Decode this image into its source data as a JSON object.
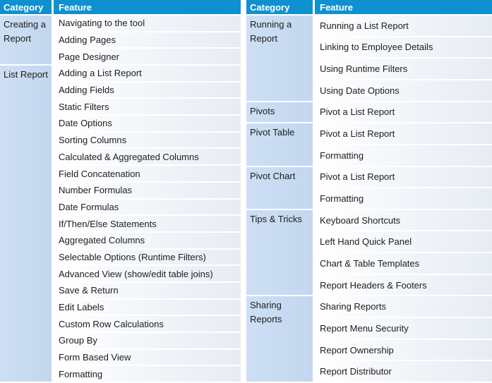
{
  "colors": {
    "header_bg": "#0E91D1",
    "header_text": "#FFFFFF",
    "category_bg_start": "#CEDFF4",
    "category_bg_end": "#C2D7EF",
    "row_bg_start": "#FFFFFF",
    "row_bg_end": "#E7ECF4",
    "body_text": "#1C1C1C",
    "separator": "#FFFFFF"
  },
  "tables": [
    {
      "name": "left",
      "headers": {
        "category": "Category",
        "feature": "Feature"
      },
      "groups": [
        {
          "category": "Creating a Report",
          "features": [
            "Navigating to the tool",
            "Adding Pages",
            "Page Designer"
          ]
        },
        {
          "category": "List Report",
          "features": [
            "Adding a List Report",
            "Adding Fields",
            "Static Filters",
            "Date Options",
            "Sorting Columns",
            "Calculated & Aggregated Columns",
            "Field Concatenation",
            "Number Formulas",
            "Date Formulas",
            "If/Then/Else Statements",
            "Aggregated Columns",
            "Selectable Options (Runtime Filters)",
            "Advanced View (show/edit table joins)",
            "Save & Return",
            "Edit Labels",
            "Custom Row Calculations",
            "Group By",
            "Form Based View",
            "Formatting"
          ]
        }
      ]
    },
    {
      "name": "right",
      "headers": {
        "category": "Category",
        "feature": "Feature"
      },
      "groups": [
        {
          "category": "Running a Report",
          "features": [
            "Running a List Report",
            "Linking to Employee Details",
            "Using Runtime Filters",
            "Using Date Options"
          ]
        },
        {
          "category": "Pivots",
          "features": [
            "Pivot a List Report"
          ]
        },
        {
          "category": "Pivot Table",
          "features": [
            "Pivot a List Report",
            "Formatting"
          ]
        },
        {
          "category": "Pivot Chart",
          "features": [
            "Pivot a List Report",
            "Formatting"
          ]
        },
        {
          "category": "Tips & Tricks",
          "features": [
            "Keyboard Shortcuts",
            "Left Hand Quick Panel",
            "Chart & Table Templates",
            "Report Headers & Footers"
          ]
        },
        {
          "category": "Sharing Reports",
          "features": [
            "Sharing Reports",
            "Report Menu Security",
            "Report Ownership",
            "Report Distributor"
          ]
        }
      ]
    }
  ]
}
